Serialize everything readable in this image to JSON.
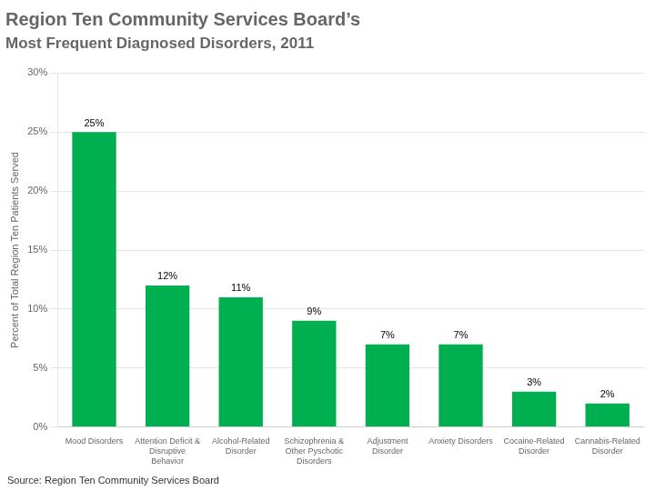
{
  "chart_data": {
    "type": "bar",
    "title": "Region Ten Community Services Board’s",
    "subtitle": "Most Frequent Diagnosed Disorders, 2011",
    "categories": [
      "Mood Disorders",
      "Attention Deficit &\nDisruptive\nBehavior",
      "Alcohol-Related\nDisorder",
      "Schizophrenia &\nOther Pyschotic\nDisorders",
      "Adjustment\nDisorder",
      "Anxiety Disorders",
      "Cocaine-Related\nDisorder",
      "Cannabis-Related\nDisorder"
    ],
    "values": [
      25,
      12,
      11,
      9,
      7,
      7,
      3,
      2
    ],
    "value_labels": [
      "25%",
      "12%",
      "11%",
      "9%",
      "7%",
      "7%",
      "3%",
      "2%"
    ],
    "data_labels": true,
    "color": "#00b050",
    "ylabel": "Percent of Total Region Ten Patients Served",
    "ylim": [
      0,
      30
    ],
    "yticks": [
      {
        "value": 0,
        "label": "0%"
      },
      {
        "value": 5,
        "label": "5%"
      },
      {
        "value": 10,
        "label": "10%"
      },
      {
        "value": 15,
        "label": "15%"
      },
      {
        "value": 20,
        "label": "20%"
      },
      {
        "value": 25,
        "label": "25%"
      },
      {
        "value": 30,
        "label": "30%"
      }
    ],
    "grid": true,
    "annotations": [
      "Source: Region Ten Community Services Board"
    ]
  }
}
